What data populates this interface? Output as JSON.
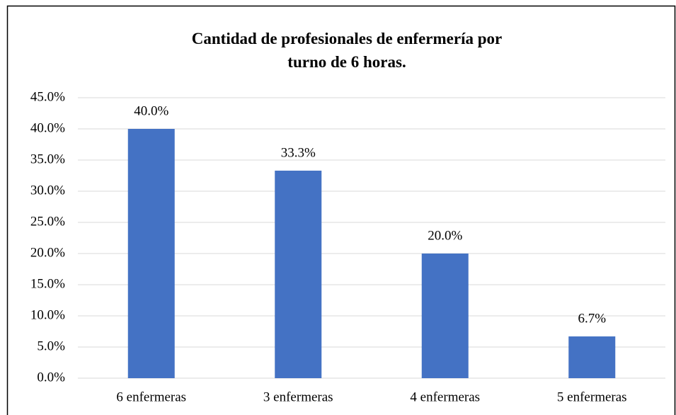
{
  "chart_data": {
    "type": "bar",
    "title": "Cantidad de profesionales de enfermería por turno de 6 horas.",
    "categories": [
      "6 enfermeras",
      "3 enfermeras",
      "4 enfermeras",
      "5 enfermeras"
    ],
    "values": [
      40.0,
      33.3,
      20.0,
      6.7
    ],
    "value_labels": [
      "40.0%",
      "33.3%",
      "20.0%",
      "6.7%"
    ],
    "color": "#4472c4",
    "ylim": [
      0,
      45
    ],
    "yticks": [
      {
        "value": 0,
        "label": "0.0%"
      },
      {
        "value": 5,
        "label": "5.0%"
      },
      {
        "value": 10,
        "label": "10.0%"
      },
      {
        "value": 15,
        "label": "15.0%"
      },
      {
        "value": 20,
        "label": "20.0%"
      },
      {
        "value": 25,
        "label": "25.0%"
      },
      {
        "value": 30,
        "label": "30.0%"
      },
      {
        "value": 35,
        "label": "35.0%"
      },
      {
        "value": 40,
        "label": "40.0%"
      },
      {
        "value": 45,
        "label": "45.0%"
      }
    ],
    "grid": true
  }
}
